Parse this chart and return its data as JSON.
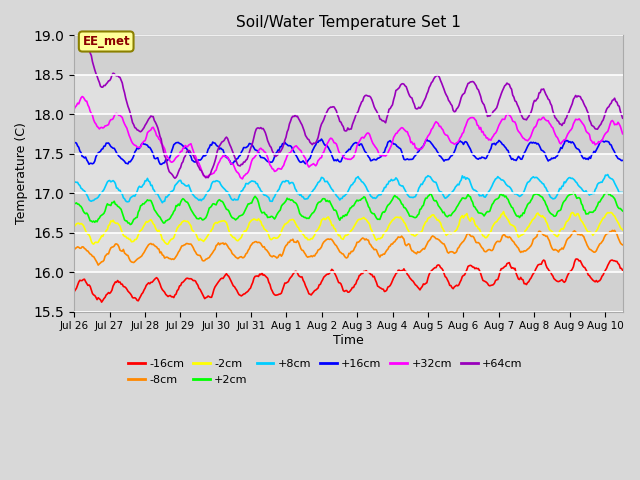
{
  "title": "Soil/Water Temperature Set 1",
  "xlabel": "Time",
  "ylabel": "Temperature (C)",
  "ylim": [
    15.5,
    19.0
  ],
  "xlim_days": 15.5,
  "fig_bg_color": "#d8d8d8",
  "plot_bg_color": "#d8d8d8",
  "annotation_text": "EE_met",
  "annotation_bg": "#ffff99",
  "annotation_border": "#8B8000",
  "series": [
    {
      "label": "-16cm",
      "color": "#ff0000",
      "base": 15.75,
      "amplitude": 0.13,
      "trend": 0.018,
      "phase": 0.0
    },
    {
      "label": "-8cm",
      "color": "#ff8800",
      "base": 16.22,
      "amplitude": 0.11,
      "trend": 0.012,
      "phase": 0.4
    },
    {
      "label": "-2cm",
      "color": "#ffff00",
      "base": 16.5,
      "amplitude": 0.13,
      "trend": 0.008,
      "phase": 0.8
    },
    {
      "label": "+2cm",
      "color": "#00ff00",
      "base": 16.75,
      "amplitude": 0.13,
      "trend": 0.008,
      "phase": 1.1
    },
    {
      "label": "+8cm",
      "color": "#00ccff",
      "base": 17.02,
      "amplitude": 0.12,
      "trend": 0.005,
      "phase": 1.4
    },
    {
      "label": "+16cm",
      "color": "#0000ff",
      "base": 17.5,
      "amplitude": 0.12,
      "trend": 0.003,
      "phase": 1.7
    },
    {
      "label": "+32cm",
      "color": "#ff00ff",
      "base": 18.1,
      "amplitude": 0.15,
      "trend": 0.0,
      "phase": 0.0
    },
    {
      "label": "+64cm",
      "color": "#9900bb",
      "base": 19.0,
      "amplitude": 0.2,
      "trend": 0.0,
      "phase": 0.0
    }
  ],
  "xtick_labels": [
    "Jul 26",
    "Jul 27",
    "Jul 28",
    "Jul 29",
    "Jul 30",
    "Jul 31",
    "Aug 1",
    "Aug 2",
    "Aug 3",
    "Aug 4",
    "Aug 5",
    "Aug 6",
    "Aug 7",
    "Aug 8",
    "Aug 9",
    "Aug 10"
  ],
  "xtick_positions": [
    0,
    1,
    2,
    3,
    4,
    5,
    6,
    7,
    8,
    9,
    10,
    11,
    12,
    13,
    14,
    15
  ],
  "n_points": 480,
  "diurnal_period": 1.0,
  "noise_scale": 0.03
}
